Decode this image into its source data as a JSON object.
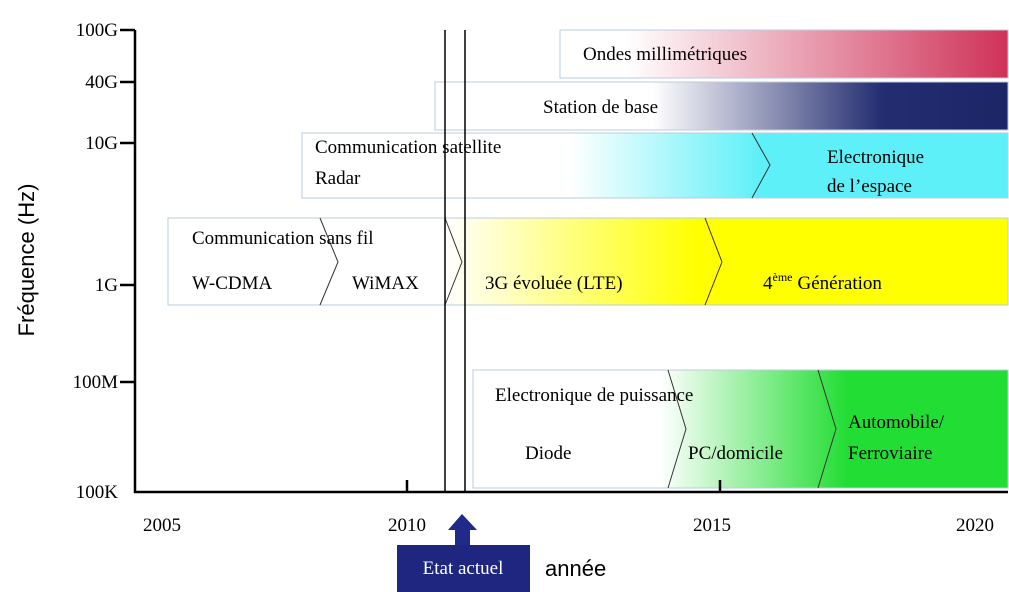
{
  "y_axis": {
    "label": "Fréquence (Hz)",
    "ticks": [
      "100G",
      "40G",
      "10G",
      "1G",
      "100M",
      "100K"
    ]
  },
  "x_axis": {
    "label": "année",
    "ticks": [
      "2005",
      "2010",
      "2015",
      "2020"
    ]
  },
  "bands": [
    {
      "labels": [
        "Ondes millimétriques"
      ]
    },
    {
      "labels": [
        "Station de base"
      ]
    },
    {
      "labels": [
        "Communication satellite",
        "Radar",
        "Electronique",
        "de l’espace"
      ]
    },
    {
      "labels": [
        "Communication sans fil",
        "W-CDMA",
        "WiMAX",
        "3G évoluée (LTE)",
        "4",
        "ème",
        "Génération"
      ]
    },
    {
      "labels": [
        "Electronique de puissance",
        "Diode",
        "PC/domicile",
        "Automobile/",
        "Ferroviaire"
      ]
    }
  ],
  "current_state": "Etat actuel"
}
